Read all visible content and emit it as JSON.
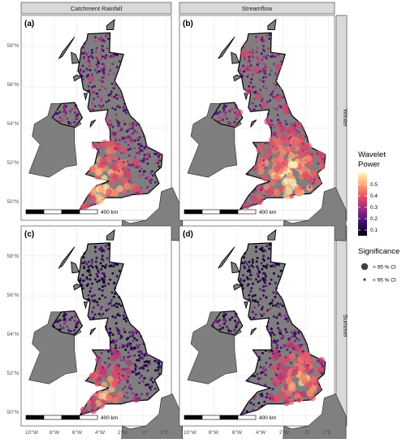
{
  "columns": [
    "Catchment Rainfall",
    "Streamflow"
  ],
  "rows": [
    "Winter",
    "Summer"
  ],
  "panel_letters": [
    "(a)",
    "(b)",
    "(c)",
    "(d)"
  ],
  "lat_ticks": [
    "58°N",
    "56°N",
    "54°N",
    "52°N",
    "50°N"
  ],
  "lon_ticks": [
    "10°W",
    "8°W",
    "6°W",
    "4°W",
    "2°W",
    "0°",
    "2°E"
  ],
  "scale_bar": {
    "label": "400 km"
  },
  "legend": {
    "color": {
      "title_line1": "Wavelet",
      "title_line2": "Power",
      "ticks": [
        "0.5",
        "0.4",
        "0.3",
        "0.2",
        "0.1"
      ],
      "stops": [
        "#fcfdbf",
        "#fe9f6d",
        "#de4968",
        "#8c2981",
        "#3b0f70",
        "#000004"
      ]
    },
    "size": {
      "title": "Significance",
      "items": [
        "> 95 % CI",
        "< 95 % CI"
      ]
    }
  },
  "colors": {
    "panel_bg": "#ffffff",
    "grid": "#ebebeb",
    "land": "#7f7f7f",
    "sea_land": "#808080",
    "strip_bg": "#d9d9d9"
  },
  "chart_data": {
    "type": "map",
    "x_range": [
      -11,
      2.5
    ],
    "y_range": [
      49.5,
      59.5
    ],
    "color_range": [
      0,
      0.55
    ],
    "panels": [
      {
        "id": "a",
        "column": "Catchment Rainfall",
        "row": "Winter",
        "hotspot": "south-west",
        "mean_power": 0.35
      },
      {
        "id": "b",
        "column": "Streamflow",
        "row": "Winter",
        "hotspot": "south",
        "mean_power": 0.38
      },
      {
        "id": "c",
        "column": "Catchment Rainfall",
        "row": "Summer",
        "hotspot": "south-west",
        "mean_power": 0.2
      },
      {
        "id": "d",
        "column": "Streamflow",
        "row": "Summer",
        "hotspot": "south-east",
        "mean_power": 0.22
      }
    ]
  }
}
